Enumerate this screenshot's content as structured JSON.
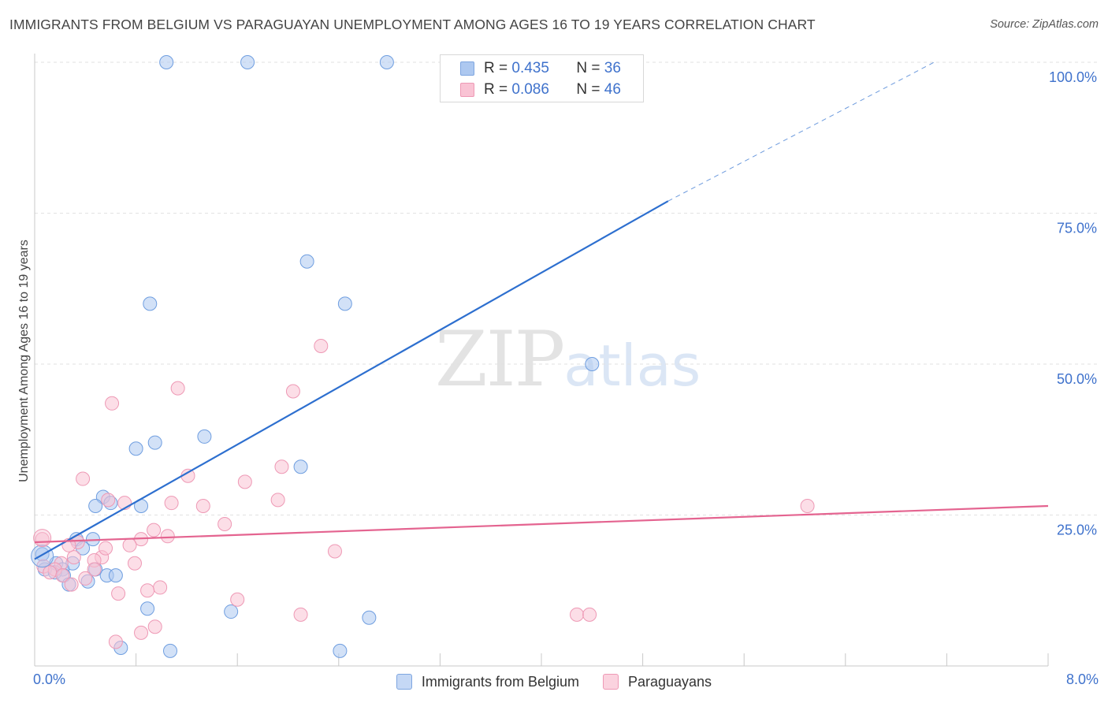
{
  "title": "IMMIGRANTS FROM BELGIUM VS PARAGUAYAN UNEMPLOYMENT AMONG AGES 16 TO 19 YEARS CORRELATION CHART",
  "source": "Source: ZipAtlas.com",
  "watermark": {
    "zip": "ZIP",
    "atlas": "atlas"
  },
  "legend": {
    "r_label": "R =",
    "n_label": "N =",
    "rows": [
      {
        "r": "0.435",
        "n": "36",
        "fill": "#adc8f0",
        "stroke": "#7ea6e0"
      },
      {
        "r": "0.086",
        "n": "46",
        "fill": "#f9c3d4",
        "stroke": "#ee99b5"
      }
    ]
  },
  "bottom_legend": [
    {
      "label": "Immigrants from Belgium",
      "fill": "#c5d8f5",
      "stroke": "#7ea6e0"
    },
    {
      "label": "Paraguayans",
      "fill": "#fbd3df",
      "stroke": "#ee99b5"
    }
  ],
  "chart_data": {
    "type": "scatter",
    "title": "IMMIGRANTS FROM BELGIUM VS PARAGUAYAN UNEMPLOYMENT AMONG AGES 16 TO 19 YEARS CORRELATION CHART",
    "xlabel": "",
    "ylabel": "Unemployment Among Ages 16 to 19 years",
    "xlim": [
      0,
      8
    ],
    "ylim": [
      0,
      100
    ],
    "x_tick_labels": [
      "0.0%",
      "8.0%"
    ],
    "y_ticks": [
      {
        "value": 25,
        "label": "25.0%"
      },
      {
        "value": 50,
        "label": "50.0%"
      },
      {
        "value": 75,
        "label": "75.0%"
      },
      {
        "value": 100,
        "label": "100.0%"
      }
    ],
    "x_tick_marks": [
      0.8,
      1.6,
      2.4,
      3.2,
      4.0,
      4.8,
      5.6,
      6.4,
      7.2,
      8.0
    ],
    "grid": true,
    "series": [
      {
        "name": "Immigrants from Belgium",
        "color": "#6f9ee0",
        "fill": "#adc8f0",
        "R": 0.435,
        "N": 36,
        "trend": {
          "x0": 0.0,
          "y0": 17.7,
          "x1": 5.0,
          "y1": 77.0,
          "dash_to_x": 7.1,
          "dash_to_y": 100.0,
          "color": "#2d6fcf"
        },
        "points": [
          {
            "x": 1.04,
            "y": 100
          },
          {
            "x": 1.68,
            "y": 100
          },
          {
            "x": 2.78,
            "y": 100
          },
          {
            "x": 2.15,
            "y": 67
          },
          {
            "x": 0.91,
            "y": 60
          },
          {
            "x": 2.45,
            "y": 60
          },
          {
            "x": 4.4,
            "y": 50
          },
          {
            "x": 1.34,
            "y": 38
          },
          {
            "x": 0.95,
            "y": 37
          },
          {
            "x": 0.8,
            "y": 36
          },
          {
            "x": 2.1,
            "y": 33
          },
          {
            "x": 0.54,
            "y": 28
          },
          {
            "x": 0.6,
            "y": 27
          },
          {
            "x": 0.48,
            "y": 26.5
          },
          {
            "x": 0.84,
            "y": 26.5
          },
          {
            "x": 0.33,
            "y": 21
          },
          {
            "x": 0.46,
            "y": 21
          },
          {
            "x": 0.38,
            "y": 19.5
          },
          {
            "x": 0.06,
            "y": 18.5
          },
          {
            "x": 0.17,
            "y": 17
          },
          {
            "x": 0.3,
            "y": 17
          },
          {
            "x": 0.08,
            "y": 16
          },
          {
            "x": 0.22,
            "y": 16
          },
          {
            "x": 0.48,
            "y": 16
          },
          {
            "x": 0.16,
            "y": 15.5
          },
          {
            "x": 0.23,
            "y": 15
          },
          {
            "x": 0.57,
            "y": 15
          },
          {
            "x": 0.64,
            "y": 15
          },
          {
            "x": 0.42,
            "y": 14
          },
          {
            "x": 0.27,
            "y": 13.5
          },
          {
            "x": 0.89,
            "y": 9.5
          },
          {
            "x": 1.55,
            "y": 9
          },
          {
            "x": 2.64,
            "y": 8
          },
          {
            "x": 0.68,
            "y": 3
          },
          {
            "x": 1.07,
            "y": 2.5
          },
          {
            "x": 2.41,
            "y": 2.5
          }
        ]
      },
      {
        "name": "Paraguayans",
        "color": "#ee99b5",
        "fill": "#f9c3d4",
        "R": 0.086,
        "N": 46,
        "trend": {
          "x0": 0.0,
          "y0": 20.5,
          "x1": 8.0,
          "y1": 26.5,
          "color": "#e46490"
        },
        "points": [
          {
            "x": 2.26,
            "y": 53
          },
          {
            "x": 1.13,
            "y": 46
          },
          {
            "x": 2.04,
            "y": 45.5
          },
          {
            "x": 0.61,
            "y": 43.5
          },
          {
            "x": 1.21,
            "y": 31.5
          },
          {
            "x": 0.38,
            "y": 31
          },
          {
            "x": 1.66,
            "y": 30.5
          },
          {
            "x": 1.95,
            "y": 33
          },
          {
            "x": 0.58,
            "y": 27.5
          },
          {
            "x": 0.71,
            "y": 27
          },
          {
            "x": 1.08,
            "y": 27
          },
          {
            "x": 1.33,
            "y": 26.5
          },
          {
            "x": 1.92,
            "y": 27.5
          },
          {
            "x": 6.1,
            "y": 26.5
          },
          {
            "x": 1.5,
            "y": 23.5
          },
          {
            "x": 0.94,
            "y": 22.5
          },
          {
            "x": 1.05,
            "y": 21.5
          },
          {
            "x": 0.84,
            "y": 21
          },
          {
            "x": 0.06,
            "y": 21
          },
          {
            "x": 0.34,
            "y": 20.5
          },
          {
            "x": 0.75,
            "y": 20
          },
          {
            "x": 2.37,
            "y": 19
          },
          {
            "x": 0.31,
            "y": 18
          },
          {
            "x": 0.53,
            "y": 18
          },
          {
            "x": 0.47,
            "y": 17.5
          },
          {
            "x": 0.21,
            "y": 17
          },
          {
            "x": 0.79,
            "y": 17
          },
          {
            "x": 0.07,
            "y": 16.5
          },
          {
            "x": 0.16,
            "y": 16
          },
          {
            "x": 0.12,
            "y": 15.5
          },
          {
            "x": 0.47,
            "y": 16
          },
          {
            "x": 0.22,
            "y": 15
          },
          {
            "x": 0.4,
            "y": 14.5
          },
          {
            "x": 0.29,
            "y": 13.5
          },
          {
            "x": 0.99,
            "y": 13
          },
          {
            "x": 0.89,
            "y": 12.5
          },
          {
            "x": 0.66,
            "y": 12
          },
          {
            "x": 1.6,
            "y": 11
          },
          {
            "x": 2.1,
            "y": 8.5
          },
          {
            "x": 4.28,
            "y": 8.5
          },
          {
            "x": 4.38,
            "y": 8.5
          },
          {
            "x": 0.95,
            "y": 6.5
          },
          {
            "x": 0.84,
            "y": 5.5
          },
          {
            "x": 0.64,
            "y": 4
          },
          {
            "x": 0.27,
            "y": 20
          },
          {
            "x": 0.56,
            "y": 19.5
          }
        ]
      }
    ]
  }
}
